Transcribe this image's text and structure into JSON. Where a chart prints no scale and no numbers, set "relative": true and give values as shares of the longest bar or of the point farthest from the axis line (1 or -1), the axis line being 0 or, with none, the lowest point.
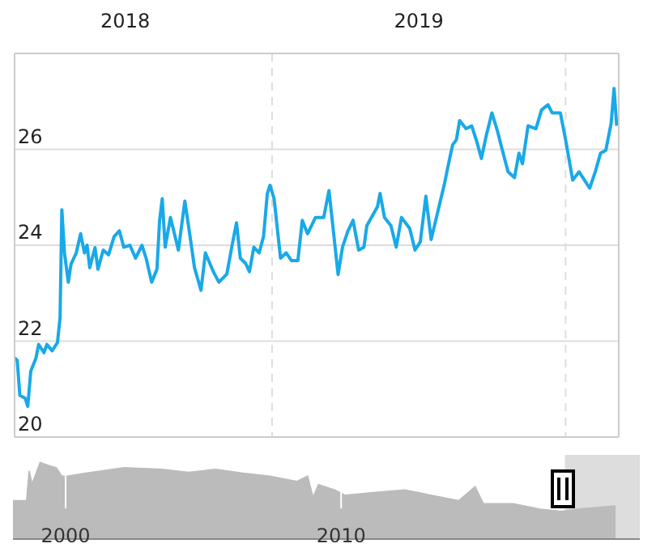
{
  "chart_data": [
    {
      "type": "line",
      "x": [
        2018.123,
        2018.132,
        2018.141,
        2018.159,
        2018.168,
        2018.178,
        2018.196,
        2018.205,
        2018.223,
        2018.233,
        2018.251,
        2018.269,
        2018.278,
        2018.284,
        2018.293,
        2018.306,
        2018.315,
        2018.333,
        2018.348,
        2018.361,
        2018.37,
        2018.379,
        2018.397,
        2018.407,
        2018.425,
        2018.443,
        2018.462,
        2018.48,
        2018.495,
        2018.516,
        2018.535,
        2018.557,
        2018.571,
        2018.59,
        2018.608,
        2018.617,
        2018.626,
        2018.636,
        2018.654,
        2018.681,
        2018.703,
        2018.718,
        2018.736,
        2018.758,
        2018.773,
        2018.8,
        2018.819,
        2018.846,
        2018.864,
        2018.879,
        2018.892,
        2018.91,
        2018.923,
        2018.938,
        2018.956,
        2018.971,
        2018.984,
        2018.993,
        2019.007,
        2019.029,
        2019.048,
        2019.066,
        2019.088,
        2019.103,
        2019.121,
        2019.148,
        2019.176,
        2019.194,
        2019.213,
        2019.225,
        2019.24,
        2019.258,
        2019.276,
        2019.295,
        2019.313,
        2019.323,
        2019.359,
        2019.368,
        2019.383,
        2019.405,
        2019.423,
        2019.441,
        2019.469,
        2019.487,
        2019.505,
        2019.524,
        2019.542,
        2019.56,
        2019.588,
        2019.603,
        2019.615,
        2019.628,
        2019.639,
        2019.661,
        2019.68,
        2019.698,
        2019.713,
        2019.731,
        2019.749,
        2019.768,
        2019.78,
        2019.804,
        2019.826,
        2019.841,
        2019.853,
        2019.872,
        2019.899,
        2019.918,
        2019.94,
        2019.954,
        2019.982,
        2020.0,
        2020.024,
        2020.046,
        2020.064,
        2020.082,
        2020.101,
        2020.119,
        2020.137,
        2020.155,
        2020.165,
        2020.174
      ],
      "series": [
        {
          "color": "#19a9e8",
          "values": [
            21.65,
            21.6,
            20.87,
            20.81,
            20.64,
            21.37,
            21.65,
            21.93,
            21.76,
            21.93,
            21.8,
            21.97,
            22.49,
            24.74,
            23.84,
            23.23,
            23.6,
            23.84,
            24.24,
            23.84,
            24.0,
            23.53,
            23.95,
            23.5,
            23.9,
            23.8,
            24.18,
            24.3,
            23.96,
            24.0,
            23.73,
            24.0,
            23.73,
            23.23,
            23.5,
            24.52,
            24.97,
            23.96,
            24.58,
            23.9,
            24.92,
            24.3,
            23.53,
            23.06,
            23.84,
            23.45,
            23.23,
            23.4,
            24.0,
            24.47,
            23.73,
            23.62,
            23.45,
            23.96,
            23.84,
            24.18,
            25.08,
            25.25,
            24.97,
            23.73,
            23.84,
            23.68,
            23.68,
            24.52,
            24.24,
            24.58,
            24.58,
            25.14,
            24.07,
            23.39,
            23.96,
            24.29,
            24.52,
            23.9,
            23.96,
            24.41,
            24.8,
            25.08,
            24.58,
            24.41,
            23.96,
            24.58,
            24.35,
            23.9,
            24.07,
            25.02,
            24.12,
            24.58,
            25.3,
            25.75,
            26.09,
            26.2,
            26.6,
            26.43,
            26.49,
            26.15,
            25.81,
            26.32,
            26.76,
            26.38,
            26.09,
            25.53,
            25.41,
            25.92,
            25.7,
            26.49,
            26.43,
            26.82,
            26.93,
            26.76,
            26.76,
            26.2,
            25.36,
            25.53,
            25.36,
            25.19,
            25.53,
            25.92,
            25.98,
            26.54,
            27.27,
            26.49
          ]
        }
      ],
      "xlim": [
        2018.123,
        2020.181
      ],
      "ylim": [
        20,
        28
      ],
      "xticks": [
        {
          "value": 2018.5,
          "label": "2018"
        },
        {
          "value": 2019,
          "label": null
        },
        {
          "value": 2019.5,
          "label": "2019"
        },
        {
          "value": 2020,
          "label": null
        }
      ],
      "yticks": [
        20,
        22,
        24,
        26
      ],
      "grid": true,
      "legend": false
    },
    {
      "type": "area",
      "relative": true,
      "x": [
        1998.09,
        1998.59,
        1998.68,
        1998.78,
        1999.08,
        1999.37,
        1999.66,
        1999.86,
        2000.06,
        2000.74,
        2002.12,
        2003.49,
        2004.47,
        2005.45,
        2006.43,
        2007.41,
        2008.39,
        2008.78,
        2008.98,
        2009.18,
        2009.76,
        2010.15,
        2011.33,
        2012.31,
        2013.29,
        2014.27,
        2014.86,
        2015.16,
        2016.24,
        2017.22,
        2018.0,
        2018.59,
        2019.96
      ],
      "values": [
        0.5,
        0.5,
        0.89,
        0.71,
        1.0,
        0.96,
        0.93,
        0.82,
        0.82,
        0.86,
        0.93,
        0.91,
        0.87,
        0.91,
        0.86,
        0.82,
        0.75,
        0.82,
        0.54,
        0.71,
        0.64,
        0.57,
        0.61,
        0.64,
        0.57,
        0.5,
        0.68,
        0.46,
        0.46,
        0.39,
        0.36,
        0.39,
        0.43
      ],
      "color": "#bbbbbb",
      "xlim": [
        1998.09,
        2020.84
      ],
      "bands": [
        {
          "axis": "x",
          "from": 2018.12,
          "to": 2020.84,
          "color": "#dddddd"
        }
      ],
      "xticks": [
        2000,
        2010
      ],
      "tick_labels": "x",
      "grid": "x",
      "legend": false
    }
  ]
}
